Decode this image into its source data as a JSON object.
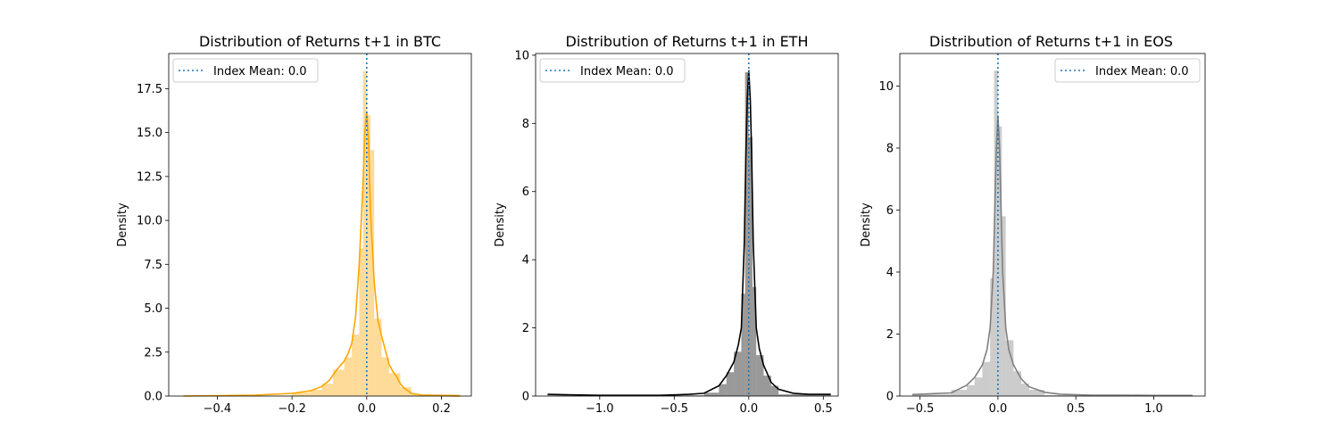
{
  "chart_data": [
    {
      "type": "histogram",
      "title": "Distribution of Returns t+1 in BTC",
      "xlabel": "",
      "ylabel": "Density",
      "xlim": [
        -0.53,
        0.28
      ],
      "ylim": [
        0,
        19.5
      ],
      "xticks": [
        -0.4,
        -0.2,
        0.0,
        0.2
      ],
      "xtick_labels": [
        "−0.4",
        "−0.2",
        "0.0",
        "0.2"
      ],
      "yticks": [
        0.0,
        2.5,
        5.0,
        7.5,
        10.0,
        12.5,
        15.0,
        17.5
      ],
      "ytick_labels": [
        "0.0",
        "2.5",
        "5.0",
        "7.5",
        "10.0",
        "12.5",
        "15.0",
        "17.5"
      ],
      "color": "#ffa500",
      "bar_alpha": 0.4,
      "mean_line": {
        "x": 0.0,
        "label": "Index Mean: 0.0",
        "color": "#1f77b4",
        "style": "dotted"
      },
      "legend_position": "upper left",
      "bins": [
        {
          "x0": -0.49,
          "x1": -0.2,
          "y": 0.03
        },
        {
          "x0": -0.2,
          "x1": -0.15,
          "y": 0.2
        },
        {
          "x0": -0.15,
          "x1": -0.12,
          "y": 0.35
        },
        {
          "x0": -0.12,
          "x1": -0.09,
          "y": 0.7
        },
        {
          "x0": -0.09,
          "x1": -0.06,
          "y": 1.5
        },
        {
          "x0": -0.06,
          "x1": -0.04,
          "y": 2.2
        },
        {
          "x0": -0.04,
          "x1": -0.02,
          "y": 3.5
        },
        {
          "x0": -0.02,
          "x1": -0.01,
          "y": 8.4
        },
        {
          "x0": -0.01,
          "x1": 0.0,
          "y": 18.5
        },
        {
          "x0": 0.0,
          "x1": 0.01,
          "y": 16.0
        },
        {
          "x0": 0.01,
          "x1": 0.02,
          "y": 14.0
        },
        {
          "x0": 0.02,
          "x1": 0.04,
          "y": 4.4
        },
        {
          "x0": 0.04,
          "x1": 0.06,
          "y": 2.2
        },
        {
          "x0": 0.06,
          "x1": 0.09,
          "y": 1.3
        },
        {
          "x0": 0.09,
          "x1": 0.12,
          "y": 0.5
        },
        {
          "x0": 0.12,
          "x1": 0.25,
          "y": 0.1
        }
      ],
      "kde": {
        "x": [
          -0.49,
          -0.3,
          -0.2,
          -0.15,
          -0.12,
          -0.1,
          -0.08,
          -0.06,
          -0.05,
          -0.04,
          -0.03,
          -0.02,
          -0.01,
          -0.005,
          0.0,
          0.005,
          0.01,
          0.02,
          0.03,
          0.04,
          0.05,
          0.06,
          0.07,
          0.08,
          0.09,
          0.1,
          0.12,
          0.15,
          0.25
        ],
        "y": [
          0.0,
          0.05,
          0.15,
          0.3,
          0.55,
          0.9,
          1.5,
          2.0,
          2.4,
          3.0,
          4.5,
          7.5,
          12.0,
          15.0,
          16.2,
          14.5,
          10.5,
          6.5,
          4.3,
          3.4,
          2.6,
          1.8,
          1.4,
          1.1,
          0.7,
          0.45,
          0.15,
          0.05,
          0.0
        ]
      }
    },
    {
      "type": "histogram",
      "title": "Distribution of Returns t+1 in ETH",
      "xlabel": "",
      "ylabel": "Density",
      "xlim": [
        -1.43,
        0.6
      ],
      "ylim": [
        0,
        10.05
      ],
      "xticks": [
        -1.0,
        -0.5,
        0.0,
        0.5
      ],
      "xtick_labels": [
        "−1.0",
        "−0.5",
        "0.0",
        "0.5"
      ],
      "yticks": [
        0,
        2,
        4,
        6,
        8,
        10
      ],
      "ytick_labels": [
        "0",
        "2",
        "4",
        "6",
        "8",
        "10"
      ],
      "color": "#000000",
      "bar_alpha": 0.4,
      "mean_line": {
        "x": 0.0,
        "label": "Index Mean: 0.0",
        "color": "#1f77b4",
        "style": "dotted"
      },
      "legend_position": "upper left",
      "bins": [
        {
          "x0": -1.35,
          "x1": -0.3,
          "y": 0.02
        },
        {
          "x0": -0.3,
          "x1": -0.2,
          "y": 0.1
        },
        {
          "x0": -0.2,
          "x1": -0.15,
          "y": 0.35
        },
        {
          "x0": -0.15,
          "x1": -0.1,
          "y": 0.7
        },
        {
          "x0": -0.1,
          "x1": -0.05,
          "y": 1.3
        },
        {
          "x0": -0.05,
          "x1": -0.025,
          "y": 3.0
        },
        {
          "x0": -0.025,
          "x1": 0.0,
          "y": 9.5
        },
        {
          "x0": 0.0,
          "x1": 0.025,
          "y": 7.6
        },
        {
          "x0": 0.025,
          "x1": 0.05,
          "y": 3.2
        },
        {
          "x0": 0.05,
          "x1": 0.1,
          "y": 1.2
        },
        {
          "x0": 0.1,
          "x1": 0.15,
          "y": 0.6
        },
        {
          "x0": 0.15,
          "x1": 0.2,
          "y": 0.3
        },
        {
          "x0": 0.2,
          "x1": 0.55,
          "y": 0.05
        }
      ],
      "kde": {
        "x": [
          -1.35,
          -1.0,
          -0.6,
          -0.4,
          -0.3,
          -0.2,
          -0.15,
          -0.1,
          -0.07,
          -0.05,
          -0.03,
          -0.02,
          -0.01,
          0.0,
          0.01,
          0.02,
          0.03,
          0.05,
          0.07,
          0.1,
          0.15,
          0.2,
          0.3,
          0.4,
          0.55
        ],
        "y": [
          0.05,
          0.02,
          0.02,
          0.05,
          0.08,
          0.3,
          0.6,
          1.0,
          1.5,
          2.0,
          4.5,
          7.0,
          8.7,
          9.55,
          8.7,
          7.0,
          4.5,
          2.0,
          1.4,
          0.9,
          0.4,
          0.2,
          0.08,
          0.05,
          0.05
        ]
      }
    },
    {
      "type": "histogram",
      "title": "Distribution of Returns t+1 in EOS",
      "xlabel": "",
      "ylabel": "Density",
      "xlim": [
        -0.63,
        1.33
      ],
      "ylim": [
        0,
        11.05
      ],
      "xticks": [
        -0.5,
        0.0,
        0.5,
        1.0
      ],
      "xtick_labels": [
        "−0.5",
        "0.0",
        "0.5",
        "1.0"
      ],
      "yticks": [
        0,
        2,
        4,
        6,
        8,
        10
      ],
      "ytick_labels": [
        "0",
        "2",
        "4",
        "6",
        "8",
        "10"
      ],
      "color": "#808080",
      "bar_alpha": 0.4,
      "mean_line": {
        "x": 0.0,
        "label": "Index Mean: 0.0",
        "color": "#1f77b4",
        "style": "dotted"
      },
      "legend_position": "upper right",
      "bins": [
        {
          "x0": -0.55,
          "x1": -0.3,
          "y": 0.05
        },
        {
          "x0": -0.3,
          "x1": -0.2,
          "y": 0.2
        },
        {
          "x0": -0.2,
          "x1": -0.15,
          "y": 0.35
        },
        {
          "x0": -0.15,
          "x1": -0.1,
          "y": 0.6
        },
        {
          "x0": -0.1,
          "x1": -0.05,
          "y": 1.1
        },
        {
          "x0": -0.05,
          "x1": -0.025,
          "y": 3.8
        },
        {
          "x0": -0.025,
          "x1": 0.0,
          "y": 10.5
        },
        {
          "x0": 0.0,
          "x1": 0.025,
          "y": 8.7
        },
        {
          "x0": 0.025,
          "x1": 0.05,
          "y": 5.8
        },
        {
          "x0": 0.05,
          "x1": 0.1,
          "y": 1.8
        },
        {
          "x0": 0.1,
          "x1": 0.15,
          "y": 0.8
        },
        {
          "x0": 0.15,
          "x1": 0.2,
          "y": 0.4
        },
        {
          "x0": 0.2,
          "x1": 0.3,
          "y": 0.2
        },
        {
          "x0": 0.3,
          "x1": 1.25,
          "y": 0.03
        }
      ],
      "kde": {
        "x": [
          -0.55,
          -0.4,
          -0.3,
          -0.2,
          -0.15,
          -0.1,
          -0.07,
          -0.05,
          -0.03,
          -0.02,
          -0.01,
          0.0,
          0.01,
          0.02,
          0.03,
          0.05,
          0.07,
          0.1,
          0.15,
          0.2,
          0.3,
          0.4,
          0.6,
          0.8,
          1.0,
          1.25
        ],
        "y": [
          0.05,
          0.08,
          0.1,
          0.35,
          0.6,
          1.0,
          1.5,
          2.2,
          4.0,
          6.0,
          8.0,
          9.05,
          8.0,
          6.0,
          4.0,
          2.2,
          1.5,
          1.0,
          0.55,
          0.3,
          0.12,
          0.06,
          0.03,
          0.03,
          0.02,
          0.02
        ]
      }
    }
  ]
}
